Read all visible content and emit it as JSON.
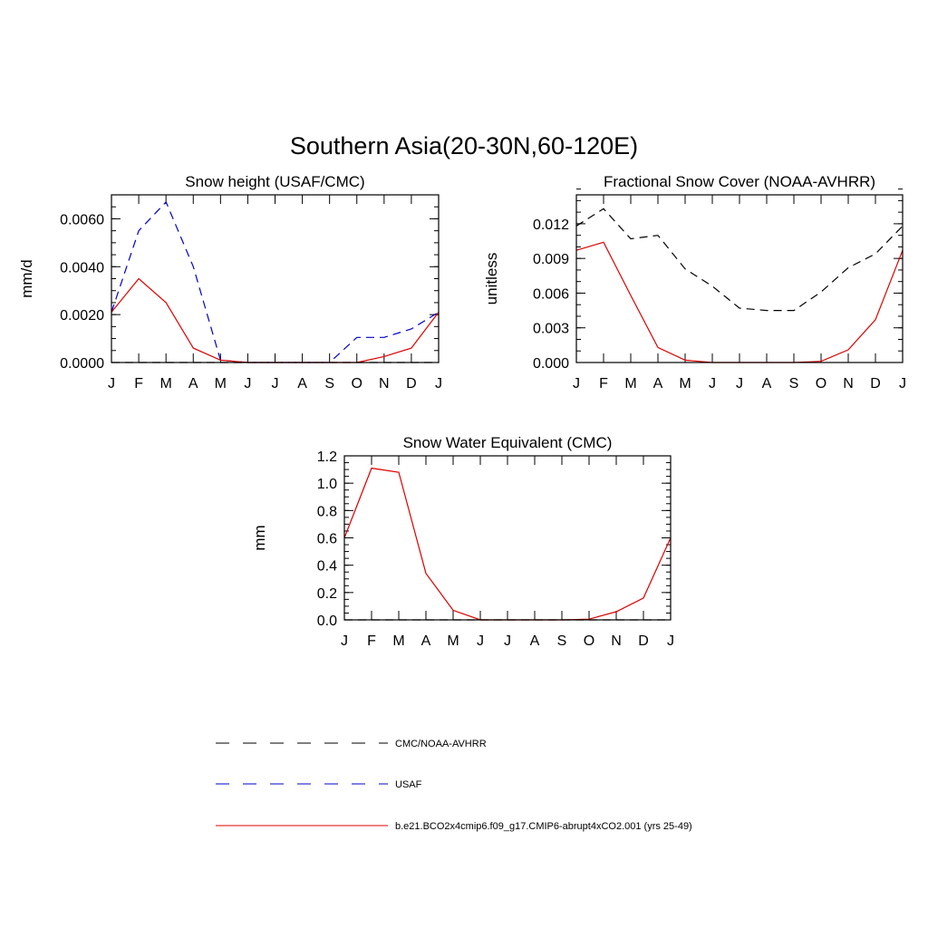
{
  "figure": {
    "title": "Southern Asia(20-30N,60-120E)"
  },
  "chart_data": [
    {
      "type": "line",
      "title": "Snow height (USAF/CMC)",
      "xlabel": "",
      "ylabel": "mm/d",
      "x": [
        "J",
        "F",
        "M",
        "A",
        "M",
        "J",
        "J",
        "A",
        "S",
        "O",
        "N",
        "D",
        "J"
      ],
      "ylim": [
        0,
        0.007
      ],
      "yticks": [
        0,
        0.002,
        0.004,
        0.006
      ],
      "ytick_labels": [
        "0.0000",
        "0.0020",
        "0.0040",
        "0.0060"
      ],
      "y_minor_step": 0.0005,
      "series": [
        {
          "name": "CMC/NOAA-AVHRR",
          "color": "#000000",
          "dash": "dash",
          "values": [
            0,
            0,
            0,
            0,
            0,
            0,
            0,
            0,
            0,
            0,
            0,
            0,
            0
          ]
        },
        {
          "name": "USAF",
          "color": "#0000cc",
          "dash": "dash",
          "values": [
            0.0021,
            0.0055,
            0.0067,
            0.004,
            0.0001,
            0,
            0,
            0,
            0,
            0.00105,
            0.00105,
            0.0014,
            0.0021
          ]
        },
        {
          "name": "b.e21.BCO2x4cmip6.f09_g17.CMIP6-abrupt4xCO2.001 (yrs 25-49)",
          "color": "#dd0000",
          "dash": "solid",
          "values": [
            0.0021,
            0.0035,
            0.0025,
            0.0006,
            0.0001,
            0,
            0,
            0,
            0,
            0,
            0.00025,
            0.0006,
            0.0021
          ]
        }
      ]
    },
    {
      "type": "line",
      "title": "Fractional Snow Cover (NOAA-AVHRR)",
      "xlabel": "",
      "ylabel": "unitless",
      "x": [
        "J",
        "F",
        "M",
        "A",
        "M",
        "J",
        "J",
        "A",
        "S",
        "O",
        "N",
        "D",
        "J"
      ],
      "ylim": [
        0,
        0.0145
      ],
      "yticks": [
        0,
        0.003,
        0.006,
        0.009,
        0.012
      ],
      "ytick_labels": [
        "0.000",
        "0.003",
        "0.006",
        "0.009",
        "0.012"
      ],
      "y_minor_step": 0.001,
      "series": [
        {
          "name": "CMC/NOAA-AVHRR",
          "color": "#000000",
          "dash": "dash",
          "values": [
            0.0118,
            0.0133,
            0.0107,
            0.011,
            0.0081,
            0.0066,
            0.0047,
            0.0045,
            0.0045,
            0.0061,
            0.0082,
            0.0094,
            0.0118
          ]
        },
        {
          "name": "b.e21.BCO2x4cmip6.f09_g17.CMIP6-abrupt4xCO2.001 (yrs 25-49)",
          "color": "#dd0000",
          "dash": "solid",
          "values": [
            0.0097,
            0.0104,
            0.0058,
            0.0013,
            0.0002,
            0,
            0,
            0,
            0,
            0.0001,
            0.0011,
            0.0037,
            0.0097
          ]
        }
      ]
    },
    {
      "type": "line",
      "title": "Snow Water Equivalent (CMC)",
      "xlabel": "",
      "ylabel": "mm",
      "x": [
        "J",
        "F",
        "M",
        "A",
        "M",
        "J",
        "J",
        "A",
        "S",
        "O",
        "N",
        "D",
        "J"
      ],
      "ylim": [
        0,
        1.2
      ],
      "yticks": [
        0,
        0.2,
        0.4,
        0.6,
        0.8,
        1.0,
        1.2
      ],
      "ytick_labels": [
        "0.0",
        "0.2",
        "0.4",
        "0.6",
        "0.8",
        "1.0",
        "1.2"
      ],
      "y_minor_step": 0.05,
      "series": [
        {
          "name": "CMC/NOAA-AVHRR",
          "color": "#000000",
          "dash": "dash",
          "values": [
            0,
            0,
            0,
            0,
            0,
            0,
            0,
            0,
            0,
            0,
            0,
            0,
            0
          ]
        },
        {
          "name": "b.e21.BCO2x4cmip6.f09_g17.CMIP6-abrupt4xCO2.001 (yrs 25-49)",
          "color": "#dd0000",
          "dash": "solid",
          "values": [
            0.6,
            1.11,
            1.08,
            0.34,
            0.07,
            0,
            0,
            0,
            0,
            0.005,
            0.06,
            0.16,
            0.6
          ]
        }
      ]
    }
  ],
  "legend": {
    "placement": "bottom",
    "entries": [
      {
        "label": "CMC/NOAA-AVHRR",
        "color": "#000000",
        "dash": "dash"
      },
      {
        "label": "USAF",
        "color": "#0000cc",
        "dash": "dash"
      },
      {
        "label": "b.e21.BCO2x4cmip6.f09_g17.CMIP6-abrupt4xCO2.001 (yrs 25-49)",
        "color": "#dd0000",
        "dash": "solid"
      }
    ]
  }
}
